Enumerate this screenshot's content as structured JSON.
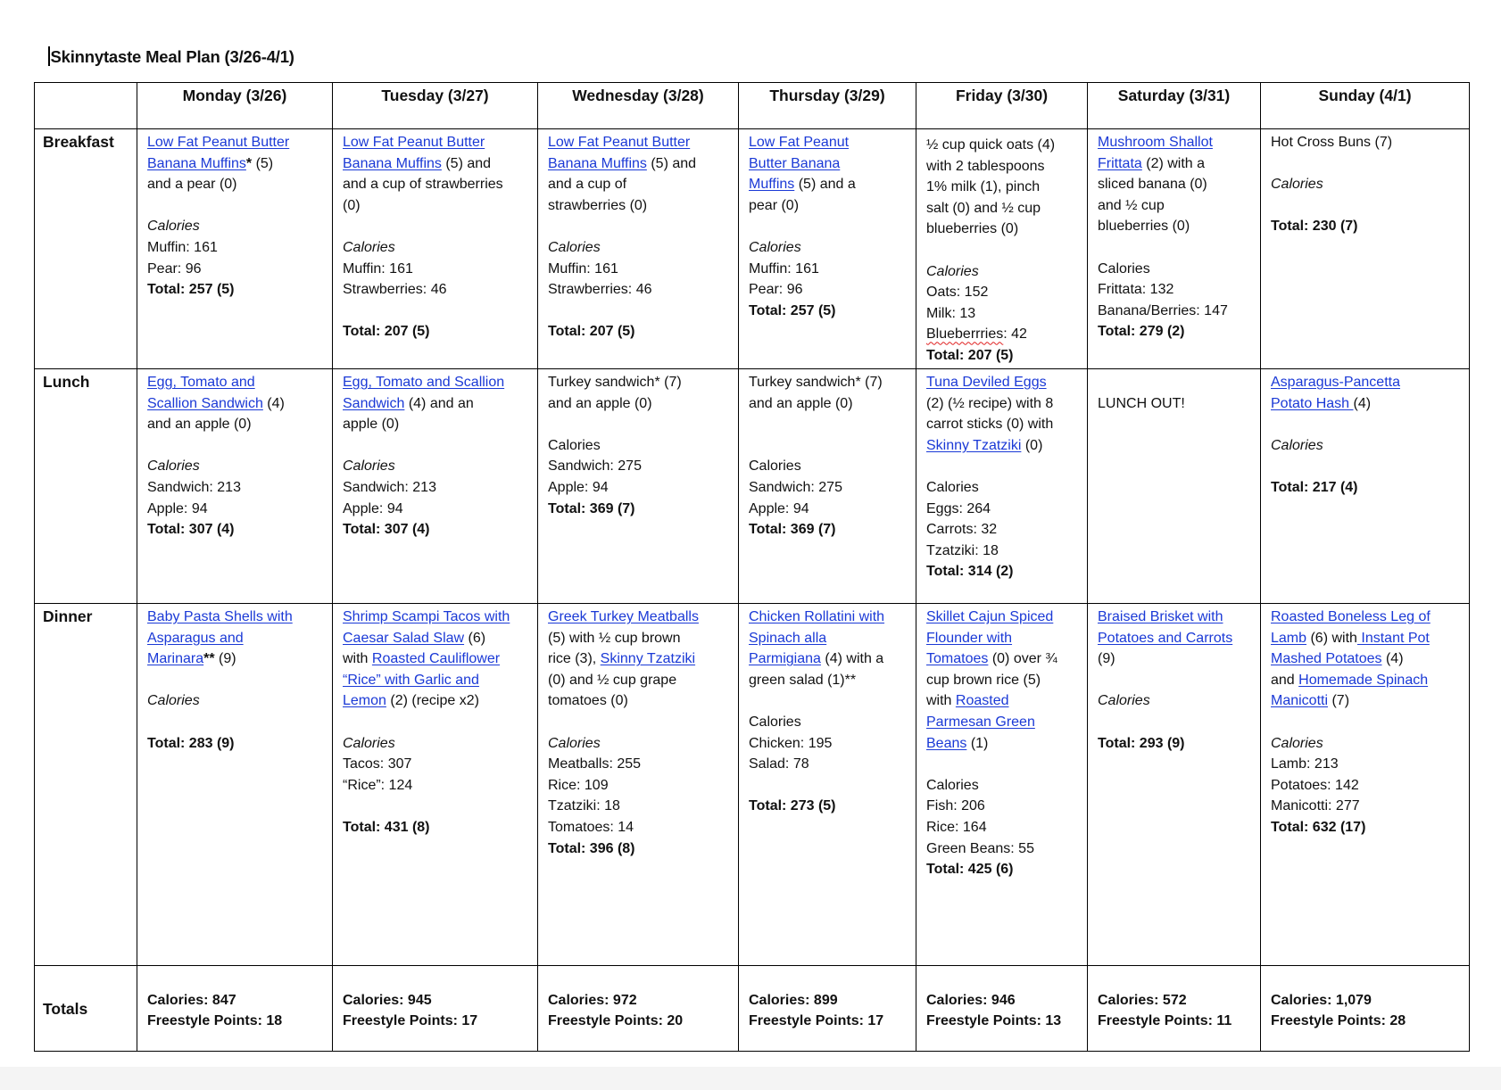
{
  "title": "Skinnytaste Meal Plan (3/26-4/1)",
  "days": [
    "Monday (3/26)",
    "Tuesday (3/27)",
    "Wednesday (3/28)",
    "Thursday (3/29)",
    "Friday (3/30)",
    "Saturday (3/31)",
    "Sunday (4/1)"
  ],
  "meals": [
    {
      "label": "Breakfast",
      "cells": [
        [
          [
            [
              "l",
              "Low Fat Peanut Butter"
            ]
          ],
          [
            [
              "l",
              "Banana Muffins"
            ],
            [
              "b",
              "*"
            ],
            [
              "",
              "&nbsp;(5)"
            ]
          ],
          [
            [
              "",
              "and a pear (0)"
            ]
          ],
          [],
          [
            [
              "i",
              "Calories"
            ]
          ],
          [
            [
              "",
              "Muffin: 161"
            ]
          ],
          [
            [
              "",
              "Pear: 96"
            ]
          ],
          [
            [
              "b",
              "Total: 257 (5)"
            ]
          ]
        ],
        [
          [
            [
              "l",
              "Low Fat Peanut Butter"
            ]
          ],
          [
            [
              "l",
              "Banana Muffins"
            ],
            [
              "",
              " (5) and"
            ]
          ],
          [
            [
              "",
              "and a cup of strawberries"
            ]
          ],
          [
            [
              "",
              "(0)"
            ]
          ],
          [],
          [
            [
              "i",
              "Calories"
            ]
          ],
          [
            [
              "",
              "Muffin: 161"
            ]
          ],
          [
            [
              "",
              "Strawberries: 46"
            ]
          ],
          [],
          [
            [
              "b",
              "Total: 207 (5)"
            ]
          ]
        ],
        [
          [
            [
              "l",
              "Low Fat Peanut Butter"
            ]
          ],
          [
            [
              "l",
              "Banana Muffins"
            ],
            [
              "",
              " (5) and"
            ]
          ],
          [
            [
              "",
              "and a cup of"
            ]
          ],
          [
            [
              "",
              "strawberries (0)"
            ]
          ],
          [],
          [
            [
              "i",
              "Calories"
            ]
          ],
          [
            [
              "",
              "Muffin: 161"
            ]
          ],
          [
            [
              "",
              "Strawberries: 46"
            ]
          ],
          [],
          [
            [
              "b",
              "Total: 207 (5)"
            ]
          ]
        ],
        [
          [
            [
              "l",
              "Low Fat Peanut"
            ]
          ],
          [
            [
              "l",
              "Butter Banana"
            ]
          ],
          [
            [
              "l",
              "Muffins"
            ],
            [
              "",
              " (5) and a"
            ]
          ],
          [
            [
              "",
              "pear (0)"
            ]
          ],
          [],
          [
            [
              "i",
              "Calories"
            ]
          ],
          [
            [
              "",
              "Muffin: 161"
            ]
          ],
          [
            [
              "",
              "Pear: 96"
            ]
          ],
          [
            [
              "b",
              "Total: 257 (5)"
            ]
          ]
        ],
        [
          [
            [
              "",
              "½ cup quick oats (4)"
            ]
          ],
          [
            [
              "",
              "with 2 tablespoons"
            ]
          ],
          [
            [
              "",
              "1% milk (1), pinch"
            ]
          ],
          [
            [
              "",
              "salt (0) and ½ cup"
            ]
          ],
          [
            [
              "",
              "blueberries (0)"
            ]
          ],
          [],
          [
            [
              "i",
              "Calories"
            ]
          ],
          [
            [
              "",
              "Oats: 152"
            ]
          ],
          [
            [
              "",
              "Milk: 13"
            ]
          ],
          [
            [
              "s",
              "Blueberrries"
            ],
            [
              "",
              ": 42"
            ]
          ],
          [
            [
              "b",
              "Total: 207 (5)"
            ]
          ]
        ],
        [
          [
            [
              "l",
              "Mushroom Shallot"
            ]
          ],
          [
            [
              "l",
              "Frittata"
            ],
            [
              "",
              " (2) with a"
            ]
          ],
          [
            [
              "",
              "sliced banana (0)"
            ]
          ],
          [
            [
              "",
              "and ½ cup"
            ]
          ],
          [
            [
              "",
              "blueberries (0)"
            ]
          ],
          [],
          [
            [
              "",
              "Calories"
            ]
          ],
          [
            [
              "",
              "Frittata: 132"
            ]
          ],
          [
            [
              "",
              "Banana/Berries: 147"
            ]
          ],
          [
            [
              "b",
              "Total: 279 (2)"
            ]
          ]
        ],
        [
          [
            [
              "",
              "Hot Cross Buns (7)"
            ]
          ],
          [],
          [
            [
              "i",
              "Calories"
            ]
          ],
          [],
          [
            [
              "b",
              "Total: 230 (7)"
            ]
          ]
        ]
      ]
    },
    {
      "label": "Lunch",
      "cells": [
        [
          [
            [
              "l",
              "Egg, Tomato and"
            ]
          ],
          [
            [
              "l",
              "Scallion Sandwich"
            ],
            [
              "",
              " (4)"
            ]
          ],
          [
            [
              "",
              "and an apple (0)"
            ]
          ],
          [],
          [
            [
              "i",
              "Calories"
            ]
          ],
          [
            [
              "",
              "Sandwich: 213"
            ]
          ],
          [
            [
              "",
              "Apple: 94"
            ]
          ],
          [
            [
              "b",
              "Total: 307 (4)"
            ]
          ]
        ],
        [
          [
            [
              "l",
              "Egg, Tomato and Scallion"
            ]
          ],
          [
            [
              "l",
              "Sandwich"
            ],
            [
              "",
              " (4) and an"
            ]
          ],
          [
            [
              "",
              "apple (0)"
            ]
          ],
          [],
          [
            [
              "i",
              "Calories"
            ]
          ],
          [
            [
              "",
              "Sandwich: 213"
            ]
          ],
          [
            [
              "",
              "Apple: 94"
            ]
          ],
          [
            [
              "b",
              "Total: 307 (4)"
            ]
          ]
        ],
        [
          [
            [
              "",
              "Turkey sandwich* (7)"
            ]
          ],
          [
            [
              "",
              "and an apple (0)"
            ]
          ],
          [],
          [
            [
              "",
              "Calories"
            ]
          ],
          [
            [
              "",
              "Sandwich: 275"
            ]
          ],
          [
            [
              "",
              "Apple: 94"
            ]
          ],
          [
            [
              "b",
              "Total: 369 (7)"
            ]
          ]
        ],
        [
          [
            [
              "",
              "Turkey sandwich* (7)"
            ]
          ],
          [
            [
              "",
              "and an apple (0)"
            ]
          ],
          [],
          [],
          [
            [
              "",
              "Calories"
            ]
          ],
          [
            [
              "",
              "Sandwich: 275"
            ]
          ],
          [
            [
              "",
              "Apple: 94"
            ]
          ],
          [
            [
              "b",
              "Total: 369 (7)"
            ]
          ]
        ],
        [
          [
            [
              "l",
              "Tuna Deviled Eggs"
            ]
          ],
          [
            [
              "",
              "(2) (½ recipe) with 8"
            ]
          ],
          [
            [
              "",
              "carrot sticks (0) with"
            ]
          ],
          [
            [
              "l",
              "Skinny Tzatziki"
            ],
            [
              "",
              " (0)"
            ]
          ],
          [],
          [
            [
              "",
              "Calories"
            ]
          ],
          [
            [
              "",
              "Eggs: 264"
            ]
          ],
          [
            [
              "",
              "Carrots: 32"
            ]
          ],
          [
            [
              "",
              "Tzatziki: 18"
            ]
          ],
          [
            [
              "b",
              "Total: 314 (2)"
            ]
          ]
        ],
        [
          [],
          [
            [
              "",
              "LUNCH OUT!"
            ]
          ]
        ],
        [
          [
            [
              "l",
              "Asparagus-Pancetta"
            ]
          ],
          [
            [
              "l",
              "Potato Hash "
            ],
            [
              "",
              "(4)"
            ]
          ],
          [],
          [
            [
              "i",
              "Calories"
            ]
          ],
          [],
          [
            [
              "b",
              "Total: 217 (4)"
            ]
          ]
        ]
      ]
    },
    {
      "label": "Dinner",
      "cells": [
        [
          [
            [
              "l",
              "Baby Pasta Shells with"
            ]
          ],
          [
            [
              "l",
              "Asparagus and"
            ]
          ],
          [
            [
              "l",
              "Marinara"
            ],
            [
              "b",
              "**"
            ],
            [
              "",
              " (9)"
            ]
          ],
          [],
          [
            [
              "i",
              "Calories"
            ]
          ],
          [],
          [
            [
              "b",
              "Total: 283 (9)"
            ]
          ]
        ],
        [
          [
            [
              "l",
              "Shrimp Scampi Tacos with"
            ]
          ],
          [
            [
              "l",
              "Caesar Salad Slaw"
            ],
            [
              "",
              " (6)"
            ]
          ],
          [
            [
              "",
              "with "
            ],
            [
              "l",
              "Roasted Cauliflower"
            ]
          ],
          [
            [
              "l",
              "“Rice” with Garlic and"
            ]
          ],
          [
            [
              "l",
              "Lemon"
            ],
            [
              "",
              " (2) (recipe x2)"
            ]
          ],
          [],
          [
            [
              "i",
              "Calories"
            ]
          ],
          [
            [
              "",
              "Tacos: 307"
            ]
          ],
          [
            [
              "",
              "“Rice”: 124"
            ]
          ],
          [],
          [
            [
              "b",
              "Total: 431 (8)"
            ]
          ]
        ],
        [
          [
            [
              "l",
              "Greek Turkey Meatballs"
            ]
          ],
          [
            [
              "",
              "(5) with ½ cup brown"
            ]
          ],
          [
            [
              "",
              "rice (3), "
            ],
            [
              "l",
              "Skinny Tzatziki"
            ]
          ],
          [
            [
              "",
              "(0) and ½ cup grape"
            ]
          ],
          [
            [
              "",
              "tomatoes (0)"
            ]
          ],
          [],
          [
            [
              "i",
              "Calories"
            ]
          ],
          [
            [
              "",
              "Meatballs: 255"
            ]
          ],
          [
            [
              "",
              "Rice: 109"
            ]
          ],
          [
            [
              "",
              "Tzatziki: 18"
            ]
          ],
          [
            [
              "",
              "Tomatoes: 14"
            ]
          ],
          [
            [
              "b",
              "Total: 396 (8)"
            ]
          ]
        ],
        [
          [
            [
              "l",
              "Chicken Rollatini with"
            ]
          ],
          [
            [
              "l",
              "Spinach alla"
            ]
          ],
          [
            [
              "l",
              "Parmigiana"
            ],
            [
              "",
              " (4) with a"
            ]
          ],
          [
            [
              "",
              "green salad (1)**"
            ]
          ],
          [],
          [
            [
              "",
              "Calories"
            ]
          ],
          [
            [
              "",
              "Chicken: 195"
            ]
          ],
          [
            [
              "",
              "Salad: 78"
            ]
          ],
          [],
          [
            [
              "b",
              "Total: 273 (5)"
            ]
          ]
        ],
        [
          [
            [
              "l",
              "Skillet Cajun Spiced"
            ]
          ],
          [
            [
              "l",
              "Flounder with"
            ]
          ],
          [
            [
              "l",
              "Tomatoes"
            ],
            [
              "",
              " (0) over ¾"
            ]
          ],
          [
            [
              "",
              "cup brown rice (5)"
            ]
          ],
          [
            [
              "",
              "with "
            ],
            [
              "l",
              "Roasted"
            ]
          ],
          [
            [
              "l",
              "Parmesan Green"
            ]
          ],
          [
            [
              "l",
              "Beans"
            ],
            [
              "",
              " (1)"
            ]
          ],
          [],
          [
            [
              "",
              "Calories"
            ]
          ],
          [
            [
              "",
              "Fish: 206"
            ]
          ],
          [
            [
              "",
              "Rice: 164"
            ]
          ],
          [
            [
              "",
              "Green Beans: 55"
            ]
          ],
          [
            [
              "b",
              "Total: 425 (6)"
            ]
          ]
        ],
        [
          [
            [
              "l",
              "Braised Brisket with"
            ]
          ],
          [
            [
              "l",
              "Potatoes and Carrots"
            ]
          ],
          [
            [
              "",
              "(9)"
            ]
          ],
          [],
          [
            [
              "i",
              "Calories"
            ]
          ],
          [],
          [
            [
              "b",
              "Total: 293 (9)"
            ]
          ]
        ],
        [
          [
            [
              "l",
              "Roasted Boneless Leg of"
            ]
          ],
          [
            [
              "l",
              "Lamb"
            ],
            [
              "",
              " (6) with"
            ],
            [
              "l",
              " Instant Pot"
            ]
          ],
          [
            [
              "l",
              "Mashed Potatoes"
            ],
            [
              "",
              " (4)"
            ]
          ],
          [
            [
              "",
              "and "
            ],
            [
              "l",
              "Homemade Spinach"
            ]
          ],
          [
            [
              "l",
              "Manicotti"
            ],
            [
              "",
              " (7)"
            ]
          ],
          [],
          [
            [
              "i",
              "Calories"
            ]
          ],
          [
            [
              "",
              "Lamb: 213"
            ]
          ],
          [
            [
              "",
              "Potatoes: 142"
            ]
          ],
          [
            [
              "",
              "Manicotti: 277"
            ]
          ],
          [
            [
              "b",
              "Total: 632 (17)"
            ]
          ]
        ]
      ]
    }
  ],
  "totals": {
    "label": "Totals",
    "cells": [
      {
        "calories": "Calories: 847",
        "points": "Freestyle Points: 18"
      },
      {
        "calories": "Calories: 945",
        "points": "Freestyle Points: 17"
      },
      {
        "calories": "Calories: 972",
        "points": "Freestyle Points: 20"
      },
      {
        "calories": "Calories: 899",
        "points": "Freestyle Points: 17"
      },
      {
        "calories": "Calories: 946",
        "points": "Freestyle Points: 13"
      },
      {
        "calories": "Calories: 572",
        "points": "Freestyle Points: 11"
      },
      {
        "calories": "Calories: 1,079",
        "points": "Freestyle Points: 28"
      }
    ]
  },
  "colors": {
    "link": "#1a39d6",
    "border": "#000000",
    "spellcheck": "#e02020"
  }
}
